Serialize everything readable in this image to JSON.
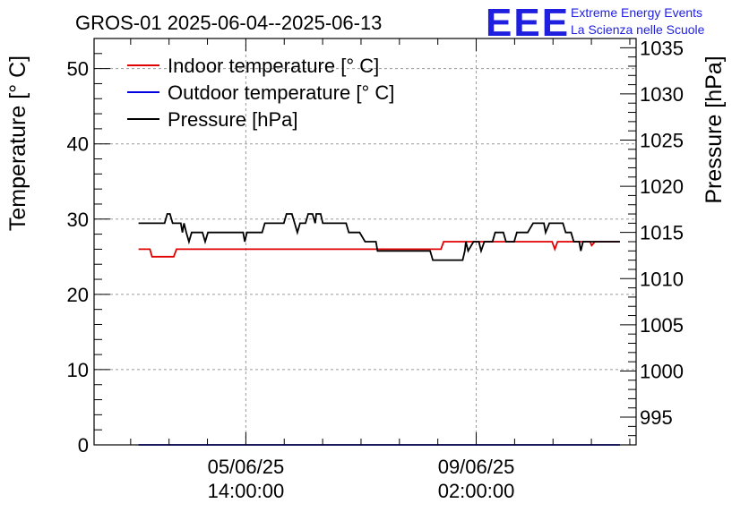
{
  "header": {
    "title": "GROS-01 2025-06-04--2025-06-13",
    "logo_text": "EEE",
    "logo_line1": "Extreme Energy Events",
    "logo_line2": "La Scienza nelle Scuole",
    "logo_color": "#1f1fe0"
  },
  "chart_data": {
    "type": "line",
    "title": "GROS-01 2025-06-04--2025-06-13",
    "ylabel": "Temperature [° C]",
    "y2label": "Pressure [hPa]",
    "ylim": [
      0,
      54
    ],
    "y2lim": [
      992,
      1036
    ],
    "yticks": [
      0,
      10,
      20,
      30,
      40,
      50
    ],
    "y2ticks": [
      995,
      1000,
      1005,
      1010,
      1015,
      1020,
      1025,
      1030,
      1035
    ],
    "xlim": [
      0,
      1
    ],
    "xticks": [
      {
        "x": 0.28,
        "line1": "05/06/25",
        "line2": "14:00:00"
      },
      {
        "x": 0.705,
        "line1": "09/06/25",
        "line2": "02:00:00"
      }
    ],
    "grid": true,
    "legend_position": "top-left",
    "series": [
      {
        "name": "Indoor temperature [° C]",
        "axis": "left",
        "color": "#e00000",
        "points": [
          [
            0.082,
            26
          ],
          [
            0.103,
            26
          ],
          [
            0.107,
            25
          ],
          [
            0.147,
            25
          ],
          [
            0.152,
            26
          ],
          [
            0.64,
            26
          ],
          [
            0.645,
            27
          ],
          [
            0.845,
            27
          ],
          [
            0.85,
            26
          ],
          [
            0.855,
            27
          ],
          [
            0.915,
            27
          ],
          [
            0.918,
            26.5
          ],
          [
            0.924,
            27
          ],
          [
            0.97,
            27
          ]
        ]
      },
      {
        "name": "Outdoor temperature [° C]",
        "axis": "left",
        "color": "#0000e0",
        "points": [
          [
            0.082,
            0
          ],
          [
            0.97,
            0
          ]
        ]
      },
      {
        "name": "Pressure [hPa]",
        "axis": "right",
        "color": "#000000",
        "points": [
          [
            0.082,
            1016
          ],
          [
            0.13,
            1016
          ],
          [
            0.135,
            1017
          ],
          [
            0.14,
            1017
          ],
          [
            0.145,
            1016
          ],
          [
            0.16,
            1016
          ],
          [
            0.163,
            1015
          ],
          [
            0.166,
            1016
          ],
          [
            0.17,
            1015
          ],
          [
            0.175,
            1014
          ],
          [
            0.18,
            1015
          ],
          [
            0.2,
            1015
          ],
          [
            0.205,
            1014
          ],
          [
            0.21,
            1015
          ],
          [
            0.275,
            1015
          ],
          [
            0.278,
            1014
          ],
          [
            0.282,
            1015
          ],
          [
            0.31,
            1015
          ],
          [
            0.315,
            1016
          ],
          [
            0.35,
            1016
          ],
          [
            0.355,
            1017
          ],
          [
            0.365,
            1017
          ],
          [
            0.37,
            1016
          ],
          [
            0.375,
            1015
          ],
          [
            0.38,
            1016
          ],
          [
            0.39,
            1016
          ],
          [
            0.395,
            1017
          ],
          [
            0.403,
            1017
          ],
          [
            0.408,
            1016
          ],
          [
            0.41,
            1017
          ],
          [
            0.418,
            1017
          ],
          [
            0.422,
            1016
          ],
          [
            0.465,
            1016
          ],
          [
            0.47,
            1015
          ],
          [
            0.49,
            1015
          ],
          [
            0.5,
            1014
          ],
          [
            0.52,
            1014
          ],
          [
            0.523,
            1013
          ],
          [
            0.62,
            1013
          ],
          [
            0.625,
            1012
          ],
          [
            0.68,
            1012
          ],
          [
            0.684,
            1013
          ],
          [
            0.686,
            1014
          ],
          [
            0.69,
            1013
          ],
          [
            0.7,
            1014
          ],
          [
            0.71,
            1014
          ],
          [
            0.714,
            1013
          ],
          [
            0.72,
            1014
          ],
          [
            0.735,
            1014
          ],
          [
            0.74,
            1015
          ],
          [
            0.755,
            1015
          ],
          [
            0.76,
            1014
          ],
          [
            0.775,
            1014
          ],
          [
            0.78,
            1015
          ],
          [
            0.8,
            1015
          ],
          [
            0.81,
            1016
          ],
          [
            0.83,
            1016
          ],
          [
            0.833,
            1015
          ],
          [
            0.84,
            1016
          ],
          [
            0.865,
            1016
          ],
          [
            0.87,
            1015
          ],
          [
            0.88,
            1015
          ],
          [
            0.885,
            1014
          ],
          [
            0.895,
            1014
          ],
          [
            0.898,
            1013
          ],
          [
            0.902,
            1014
          ],
          [
            0.97,
            1014
          ]
        ]
      }
    ]
  }
}
